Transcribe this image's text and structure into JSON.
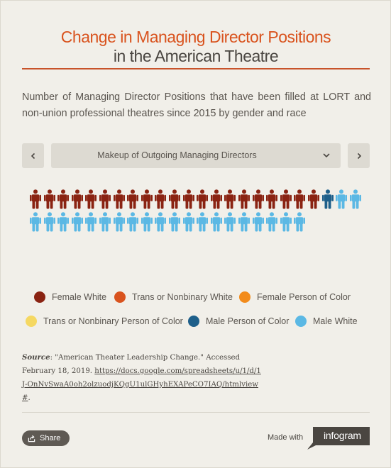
{
  "header": {
    "title_line1": "Change in Managing Director Positions",
    "title_line2": "in the American Theatre",
    "subtitle": "Number of Managing Director Positions that have been filled at LORT and non-union professional theatres since 2015 by gender and race"
  },
  "selector": {
    "selected": "Makeup of Outgoing Managing Directors"
  },
  "colors": {
    "female_white": "#8a2312",
    "trans_nonbinary_white": "#d9531e",
    "female_poc": "#f28b1b",
    "trans_nonbinary_poc": "#f5d862",
    "male_poc": "#1e5f8a",
    "male_white": "#5bb8e4"
  },
  "pictogram": {
    "groups": [
      {
        "category": "Female White",
        "count": 21
      },
      {
        "category": "Male Person of Color",
        "count": 1
      },
      {
        "category": "Male White",
        "count": 22
      }
    ]
  },
  "legend": {
    "items": [
      {
        "label": "Female White",
        "color": "#8a2312"
      },
      {
        "label": "Trans or Nonbinary White",
        "color": "#d9531e"
      },
      {
        "label": "Female Person of Color",
        "color": "#f28b1b"
      },
      {
        "label": "Trans or Nonbinary Person of Color",
        "color": "#f5d862"
      },
      {
        "label": "Male Person of Color",
        "color": "#1e5f8a"
      },
      {
        "label": "Male White",
        "color": "#5bb8e4"
      }
    ]
  },
  "source": {
    "label": "Source",
    "text": ":  \"American Theater Leadership Change.\" Accessed February 18, 2019. ",
    "link": "https://docs.google.com/spreadsheets/u/1/d/1J-OnNvSwaA0oh2olzuodjKQgU1ulGHyhEXAPeCO7IAQ/htmlview#",
    "end": "."
  },
  "footer": {
    "share_label": "Share",
    "made_with": "Made with",
    "brand": "infogram"
  }
}
